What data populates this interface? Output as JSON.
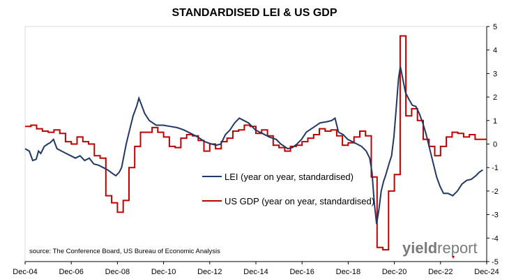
{
  "chart_data": {
    "type": "line",
    "title": "STANDARDISED LEI & US GDP",
    "xlabel": "",
    "ylabel": "",
    "x_ticks": [
      "Dec-04",
      "Dec-06",
      "Dec-08",
      "Dec-10",
      "Dec-12",
      "Dec-14",
      "Dec-16",
      "Dec-18",
      "Dec-20",
      "Dec-22",
      "Dec-24"
    ],
    "x_range": [
      2004.92,
      2024.92
    ],
    "ylim": [
      -5,
      5
    ],
    "y_ticks": [
      5,
      4,
      3,
      2,
      1,
      0,
      -1,
      -2,
      -3,
      -4,
      -5
    ],
    "y_axis_side": "right",
    "grid": false,
    "legend": {
      "position": "center",
      "entries": [
        "LEI (year on year, standardised)",
        "US GDP (year on year, standardised)"
      ]
    },
    "annotations": {
      "source": "source: The Conference Board, US Bureau of Economic Analysis"
    },
    "logo": {
      "text_dark": "yield",
      "text_light": "report"
    },
    "colors": {
      "lei": "#1f3864",
      "gdp": "#c00000",
      "axis": "#000000"
    },
    "series": [
      {
        "name": "LEI (year on year, standardised)",
        "type": "line",
        "points": [
          [
            2004.92,
            -0.2
          ],
          [
            2005.1,
            -0.3
          ],
          [
            2005.25,
            -0.7
          ],
          [
            2005.4,
            -0.65
          ],
          [
            2005.5,
            -0.3
          ],
          [
            2005.6,
            -0.4
          ],
          [
            2005.75,
            -0.1
          ],
          [
            2005.9,
            0.0
          ],
          [
            2006.0,
            0.05
          ],
          [
            2006.15,
            0.2
          ],
          [
            2006.3,
            -0.2
          ],
          [
            2006.5,
            -0.3
          ],
          [
            2006.7,
            -0.4
          ],
          [
            2006.9,
            -0.5
          ],
          [
            2007.1,
            -0.6
          ],
          [
            2007.3,
            -0.5
          ],
          [
            2007.5,
            -0.7
          ],
          [
            2007.7,
            -0.6
          ],
          [
            2007.9,
            -0.85
          ],
          [
            2008.1,
            -0.9
          ],
          [
            2008.3,
            -1.0
          ],
          [
            2008.5,
            -1.1
          ],
          [
            2008.7,
            -1.25
          ],
          [
            2008.85,
            -1.35
          ],
          [
            2009.0,
            -1.2
          ],
          [
            2009.1,
            -1.0
          ],
          [
            2009.2,
            -0.5
          ],
          [
            2009.3,
            0.0
          ],
          [
            2009.45,
            0.6
          ],
          [
            2009.6,
            1.2
          ],
          [
            2009.75,
            1.6
          ],
          [
            2009.85,
            1.95
          ],
          [
            2009.95,
            1.7
          ],
          [
            2010.1,
            1.3
          ],
          [
            2010.3,
            1.0
          ],
          [
            2010.6,
            0.8
          ],
          [
            2010.9,
            0.8
          ],
          [
            2011.2,
            0.75
          ],
          [
            2011.5,
            0.7
          ],
          [
            2011.8,
            0.6
          ],
          [
            2012.1,
            0.45
          ],
          [
            2012.4,
            0.3
          ],
          [
            2012.7,
            0.1
          ],
          [
            2013.0,
            0.0
          ],
          [
            2013.2,
            -0.05
          ],
          [
            2013.4,
            0.0
          ],
          [
            2013.6,
            0.4
          ],
          [
            2013.8,
            0.6
          ],
          [
            2014.0,
            0.9
          ],
          [
            2014.2,
            1.1
          ],
          [
            2014.4,
            1.0
          ],
          [
            2014.6,
            0.9
          ],
          [
            2014.9,
            0.6
          ],
          [
            2015.2,
            0.45
          ],
          [
            2015.5,
            0.3
          ],
          [
            2015.8,
            0.2
          ],
          [
            2016.0,
            0.0
          ],
          [
            2016.3,
            -0.2
          ],
          [
            2016.5,
            -0.15
          ],
          [
            2016.7,
            0.0
          ],
          [
            2016.9,
            0.2
          ],
          [
            2017.1,
            0.5
          ],
          [
            2017.4,
            0.7
          ],
          [
            2017.7,
            0.9
          ],
          [
            2018.0,
            0.95
          ],
          [
            2018.2,
            1.0
          ],
          [
            2018.35,
            1.1
          ],
          [
            2018.5,
            0.5
          ],
          [
            2018.7,
            0.4
          ],
          [
            2018.9,
            0.2
          ],
          [
            2019.1,
            0.1
          ],
          [
            2019.3,
            0.0
          ],
          [
            2019.5,
            -0.1
          ],
          [
            2019.7,
            -0.3
          ],
          [
            2019.85,
            -0.6
          ],
          [
            2019.95,
            -1.2
          ],
          [
            2020.05,
            -2.5
          ],
          [
            2020.15,
            -3.4
          ],
          [
            2020.25,
            -2.8
          ],
          [
            2020.35,
            -2.0
          ],
          [
            2020.45,
            -1.6
          ],
          [
            2020.55,
            -1.3
          ],
          [
            2020.7,
            -0.8
          ],
          [
            2020.8,
            -0.5
          ],
          [
            2020.9,
            0.3
          ],
          [
            2021.0,
            1.5
          ],
          [
            2021.1,
            2.8
          ],
          [
            2021.18,
            3.3
          ],
          [
            2021.28,
            2.8
          ],
          [
            2021.4,
            2.2
          ],
          [
            2021.55,
            1.9
          ],
          [
            2021.7,
            1.65
          ],
          [
            2021.85,
            1.6
          ],
          [
            2022.0,
            1.3
          ],
          [
            2022.15,
            0.9
          ],
          [
            2022.3,
            0.4
          ],
          [
            2022.45,
            -0.2
          ],
          [
            2022.6,
            -0.8
          ],
          [
            2022.75,
            -1.4
          ],
          [
            2022.9,
            -1.8
          ],
          [
            2023.05,
            -2.1
          ],
          [
            2023.25,
            -2.1
          ],
          [
            2023.45,
            -2.2
          ],
          [
            2023.65,
            -2.0
          ],
          [
            2023.85,
            -1.7
          ],
          [
            2024.05,
            -1.55
          ],
          [
            2024.25,
            -1.5
          ],
          [
            2024.45,
            -1.35
          ],
          [
            2024.6,
            -1.2
          ],
          [
            2024.75,
            -1.1
          ]
        ]
      },
      {
        "name": "US GDP (year on year, standardised)",
        "type": "step",
        "points": [
          [
            2004.92,
            0.75
          ],
          [
            2005.17,
            0.8
          ],
          [
            2005.42,
            0.65
          ],
          [
            2005.67,
            0.55
          ],
          [
            2005.92,
            0.5
          ],
          [
            2006.17,
            0.6
          ],
          [
            2006.42,
            0.45
          ],
          [
            2006.67,
            0.1
          ],
          [
            2006.92,
            0.0
          ],
          [
            2007.17,
            0.3
          ],
          [
            2007.42,
            0.1
          ],
          [
            2007.67,
            0.0
          ],
          [
            2007.92,
            -0.5
          ],
          [
            2008.17,
            -0.6
          ],
          [
            2008.42,
            -2.2
          ],
          [
            2008.67,
            -2.5
          ],
          [
            2008.92,
            -2.9
          ],
          [
            2009.17,
            -2.4
          ],
          [
            2009.42,
            -1.0
          ],
          [
            2009.67,
            -0.1
          ],
          [
            2009.92,
            0.5
          ],
          [
            2010.17,
            0.5
          ],
          [
            2010.42,
            0.7
          ],
          [
            2010.67,
            0.5
          ],
          [
            2010.92,
            0.3
          ],
          [
            2011.17,
            -0.1
          ],
          [
            2011.42,
            -0.15
          ],
          [
            2011.67,
            0.25
          ],
          [
            2011.92,
            0.4
          ],
          [
            2012.17,
            0.35
          ],
          [
            2012.42,
            0.15
          ],
          [
            2012.67,
            -0.3
          ],
          [
            2012.92,
            0.0
          ],
          [
            2013.17,
            -0.2
          ],
          [
            2013.42,
            0.1
          ],
          [
            2013.67,
            0.25
          ],
          [
            2013.92,
            0.55
          ],
          [
            2014.17,
            0.6
          ],
          [
            2014.42,
            0.8
          ],
          [
            2014.67,
            0.75
          ],
          [
            2014.92,
            0.45
          ],
          [
            2015.17,
            0.6
          ],
          [
            2015.42,
            0.35
          ],
          [
            2015.67,
            -0.05
          ],
          [
            2015.92,
            -0.15
          ],
          [
            2016.17,
            -0.3
          ],
          [
            2016.42,
            -0.1
          ],
          [
            2016.67,
            -0.05
          ],
          [
            2016.92,
            0.1
          ],
          [
            2017.17,
            0.25
          ],
          [
            2017.42,
            0.4
          ],
          [
            2017.67,
            0.65
          ],
          [
            2017.92,
            0.55
          ],
          [
            2018.17,
            0.6
          ],
          [
            2018.42,
            0.35
          ],
          [
            2018.67,
            -0.05
          ],
          [
            2018.92,
            0.05
          ],
          [
            2019.17,
            0.3
          ],
          [
            2019.42,
            0.55
          ],
          [
            2019.67,
            0.35
          ],
          [
            2019.92,
            -1.4
          ],
          [
            2020.17,
            -4.4
          ],
          [
            2020.42,
            -4.5
          ],
          [
            2020.67,
            -2.0
          ],
          [
            2020.92,
            -1.3
          ],
          [
            2021.17,
            4.6
          ],
          [
            2021.42,
            1.2
          ],
          [
            2021.67,
            1.5
          ],
          [
            2021.92,
            1.0
          ],
          [
            2022.17,
            0.2
          ],
          [
            2022.42,
            -0.1
          ],
          [
            2022.67,
            -0.5
          ],
          [
            2022.92,
            -0.1
          ],
          [
            2023.17,
            0.3
          ],
          [
            2023.42,
            0.5
          ],
          [
            2023.67,
            0.45
          ],
          [
            2023.92,
            0.3
          ],
          [
            2024.17,
            0.4
          ],
          [
            2024.42,
            0.2
          ],
          [
            2024.67,
            0.2
          ]
        ]
      }
    ]
  }
}
